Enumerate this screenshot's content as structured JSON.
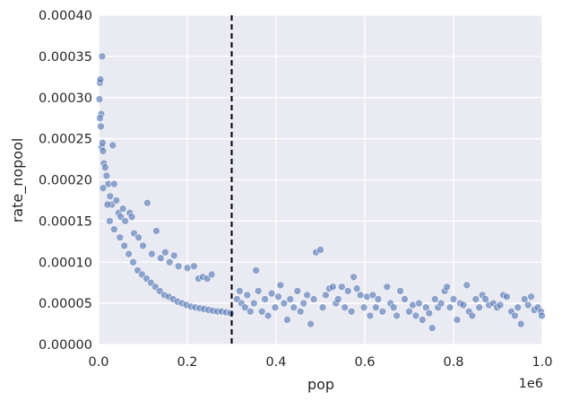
{
  "chart_data": {
    "type": "scatter",
    "title": "",
    "xlabel": "pop",
    "ylabel": "rate_nopool",
    "x_offset_text": "1e6",
    "xlim": [
      0,
      1000000
    ],
    "ylim": [
      0,
      0.0004
    ],
    "x_ticks": [
      0,
      200000,
      400000,
      600000,
      800000,
      1000000
    ],
    "x_tick_labels": [
      "0.0",
      "0.2",
      "0.4",
      "0.6",
      "0.8",
      "1.0"
    ],
    "y_ticks": [
      0,
      5e-05,
      0.0001,
      0.00015,
      0.0002,
      0.00025,
      0.0003,
      0.00035,
      0.0004
    ],
    "y_tick_labels": [
      "0.00000",
      "0.00005",
      "0.00010",
      "0.00015",
      "0.00020",
      "0.00025",
      "0.00030",
      "0.00035",
      "0.00040"
    ],
    "grid": true,
    "vline": {
      "x": 300000,
      "style": "dashed",
      "color": "#000000"
    },
    "point_color": "#4c72b0",
    "point_alpha": 0.6,
    "background": "#eaeaf2",
    "points": [
      [
        2000,
        0.000298
      ],
      [
        3000,
        0.000318
      ],
      [
        4000,
        0.000322
      ],
      [
        8000,
        0.00035
      ],
      [
        6000,
        0.00028
      ],
      [
        3000,
        0.000275
      ],
      [
        5000,
        0.000265
      ],
      [
        7000,
        0.00024
      ],
      [
        9000,
        0.000245
      ],
      [
        10000,
        0.000235
      ],
      [
        12000,
        0.00022
      ],
      [
        15000,
        0.000215
      ],
      [
        18000,
        0.000205
      ],
      [
        22000,
        0.000195
      ],
      [
        26000,
        0.00018
      ],
      [
        30000,
        0.00017
      ],
      [
        32000,
        0.000242
      ],
      [
        35000,
        0.000195
      ],
      [
        40000,
        0.000175
      ],
      [
        45000,
        0.00016
      ],
      [
        50000,
        0.000155
      ],
      [
        55000,
        0.000165
      ],
      [
        60000,
        0.00015
      ],
      [
        70000,
        0.00016
      ],
      [
        75000,
        0.000155
      ],
      [
        80000,
        0.000135
      ],
      [
        90000,
        0.00013
      ],
      [
        100000,
        0.00012
      ],
      [
        110000,
        0.000172
      ],
      [
        120000,
        0.00011
      ],
      [
        130000,
        0.000138
      ],
      [
        140000,
        0.000105
      ],
      [
        150000,
        0.000112
      ],
      [
        160000,
        0.0001
      ],
      [
        170000,
        0.000108
      ],
      [
        180000,
        9.5e-05
      ],
      [
        200000,
        9.3e-05
      ],
      [
        215000,
        9.5e-05
      ],
      [
        225000,
        8e-05
      ],
      [
        235000,
        8.2e-05
      ],
      [
        245000,
        8e-05
      ],
      [
        255000,
        8.5e-05
      ],
      [
        10000,
        0.00019
      ],
      [
        20000,
        0.00017
      ],
      [
        25000,
        0.00015
      ],
      [
        35000,
        0.00014
      ],
      [
        48000,
        0.00013
      ],
      [
        58000,
        0.00012
      ],
      [
        68000,
        0.00011
      ],
      [
        78000,
        0.0001
      ],
      [
        88000,
        9e-05
      ],
      [
        98000,
        8.5e-05
      ],
      [
        108000,
        8e-05
      ],
      [
        118000,
        7.5e-05
      ],
      [
        128000,
        7e-05
      ],
      [
        138000,
        6.5e-05
      ],
      [
        148000,
        6e-05
      ],
      [
        158000,
        5.8e-05
      ],
      [
        168000,
        5.5e-05
      ],
      [
        178000,
        5.2e-05
      ],
      [
        188000,
        5e-05
      ],
      [
        198000,
        4.8e-05
      ],
      [
        208000,
        4.6e-05
      ],
      [
        218000,
        4.5e-05
      ],
      [
        228000,
        4.4e-05
      ],
      [
        238000,
        4.3e-05
      ],
      [
        248000,
        4.2e-05
      ],
      [
        258000,
        4.1e-05
      ],
      [
        268000,
        4e-05
      ],
      [
        278000,
        4e-05
      ],
      [
        288000,
        3.9e-05
      ],
      [
        298000,
        3.8e-05
      ],
      [
        312000,
        5.5e-05
      ],
      [
        318000,
        6.5e-05
      ],
      [
        322000,
        5e-05
      ],
      [
        330000,
        4.5e-05
      ],
      [
        335000,
        6e-05
      ],
      [
        342000,
        4e-05
      ],
      [
        350000,
        5e-05
      ],
      [
        355000,
        9e-05
      ],
      [
        360000,
        6.5e-05
      ],
      [
        368000,
        4e-05
      ],
      [
        375000,
        5.5e-05
      ],
      [
        382000,
        3.5e-05
      ],
      [
        390000,
        6.2e-05
      ],
      [
        398000,
        4.5e-05
      ],
      [
        405000,
        5.8e-05
      ],
      [
        410000,
        7.2e-05
      ],
      [
        418000,
        5e-05
      ],
      [
        425000,
        3e-05
      ],
      [
        432000,
        5.5e-05
      ],
      [
        440000,
        4.5e-05
      ],
      [
        448000,
        6.5e-05
      ],
      [
        455000,
        4e-05
      ],
      [
        462000,
        5e-05
      ],
      [
        470000,
        6e-05
      ],
      [
        478000,
        2.5e-05
      ],
      [
        485000,
        5.5e-05
      ],
      [
        490000,
        0.000112
      ],
      [
        500000,
        0.000115
      ],
      [
        505000,
        4.5e-05
      ],
      [
        512000,
        6e-05
      ],
      [
        520000,
        6.8e-05
      ],
      [
        528000,
        7e-05
      ],
      [
        535000,
        5e-05
      ],
      [
        540000,
        5.5e-05
      ],
      [
        548000,
        7e-05
      ],
      [
        555000,
        4.5e-05
      ],
      [
        562000,
        6.5e-05
      ],
      [
        570000,
        4e-05
      ],
      [
        575000,
        8.2e-05
      ],
      [
        582000,
        6.8e-05
      ],
      [
        590000,
        6e-05
      ],
      [
        598000,
        4.5e-05
      ],
      [
        605000,
        5.8e-05
      ],
      [
        612000,
        3.5e-05
      ],
      [
        618000,
        6e-05
      ],
      [
        625000,
        4.5e-05
      ],
      [
        630000,
        5.5e-05
      ],
      [
        640000,
        4e-05
      ],
      [
        650000,
        7e-05
      ],
      [
        658000,
        5e-05
      ],
      [
        665000,
        4.5e-05
      ],
      [
        672000,
        3.5e-05
      ],
      [
        680000,
        6.5e-05
      ],
      [
        690000,
        5.5e-05
      ],
      [
        700000,
        4e-05
      ],
      [
        708000,
        4.8e-05
      ],
      [
        715000,
        3.5e-05
      ],
      [
        722000,
        5e-05
      ],
      [
        730000,
        3e-05
      ],
      [
        738000,
        4.5e-05
      ],
      [
        745000,
        3.8e-05
      ],
      [
        752000,
        2e-05
      ],
      [
        758000,
        5.5e-05
      ],
      [
        765000,
        4.5e-05
      ],
      [
        772000,
        5e-05
      ],
      [
        780000,
        6.5e-05
      ],
      [
        785000,
        7e-05
      ],
      [
        792000,
        4.5e-05
      ],
      [
        800000,
        5.5e-05
      ],
      [
        808000,
        3e-05
      ],
      [
        815000,
        5e-05
      ],
      [
        822000,
        4.8e-05
      ],
      [
        830000,
        7.2e-05
      ],
      [
        835000,
        4e-05
      ],
      [
        842000,
        3.5e-05
      ],
      [
        850000,
        5.5e-05
      ],
      [
        858000,
        4.5e-05
      ],
      [
        865000,
        6e-05
      ],
      [
        872000,
        5.5e-05
      ],
      [
        880000,
        4.8e-05
      ],
      [
        890000,
        5e-05
      ],
      [
        898000,
        4.5e-05
      ],
      [
        905000,
        4.8e-05
      ],
      [
        912000,
        6e-05
      ],
      [
        920000,
        5.8e-05
      ],
      [
        930000,
        4e-05
      ],
      [
        938000,
        3.5e-05
      ],
      [
        945000,
        4.5e-05
      ],
      [
        952000,
        2.5e-05
      ],
      [
        960000,
        5.5e-05
      ],
      [
        968000,
        4.8e-05
      ],
      [
        975000,
        5.8e-05
      ],
      [
        982000,
        4.2e-05
      ],
      [
        990000,
        4.5e-05
      ],
      [
        997000,
        4e-05
      ],
      [
        999000,
        3.5e-05
      ]
    ]
  }
}
